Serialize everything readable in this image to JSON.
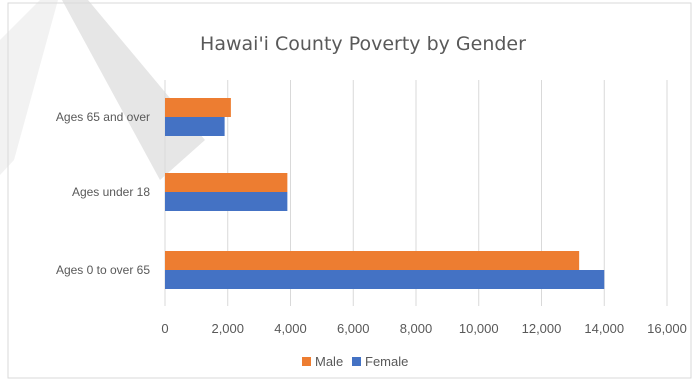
{
  "chart_data": {
    "type": "bar",
    "orientation": "horizontal",
    "title": "Hawai'i County Poverty by Gender",
    "categories": [
      "Ages 65 and over",
      "Ages under 18",
      "Ages 0 to over 65"
    ],
    "series": [
      {
        "name": "Male",
        "values": [
          2100,
          3900,
          13200
        ],
        "color": "#ED7D31"
      },
      {
        "name": "Female",
        "values": [
          1900,
          3900,
          14000
        ],
        "color": "#4472C4"
      }
    ],
    "xlim": [
      0,
      16000
    ],
    "x_ticks": [
      "0",
      "2,000",
      "4,000",
      "6,000",
      "8,000",
      "10,000",
      "12,000",
      "14,000",
      "16,000"
    ],
    "grid": true,
    "legend_position": "bottom"
  }
}
